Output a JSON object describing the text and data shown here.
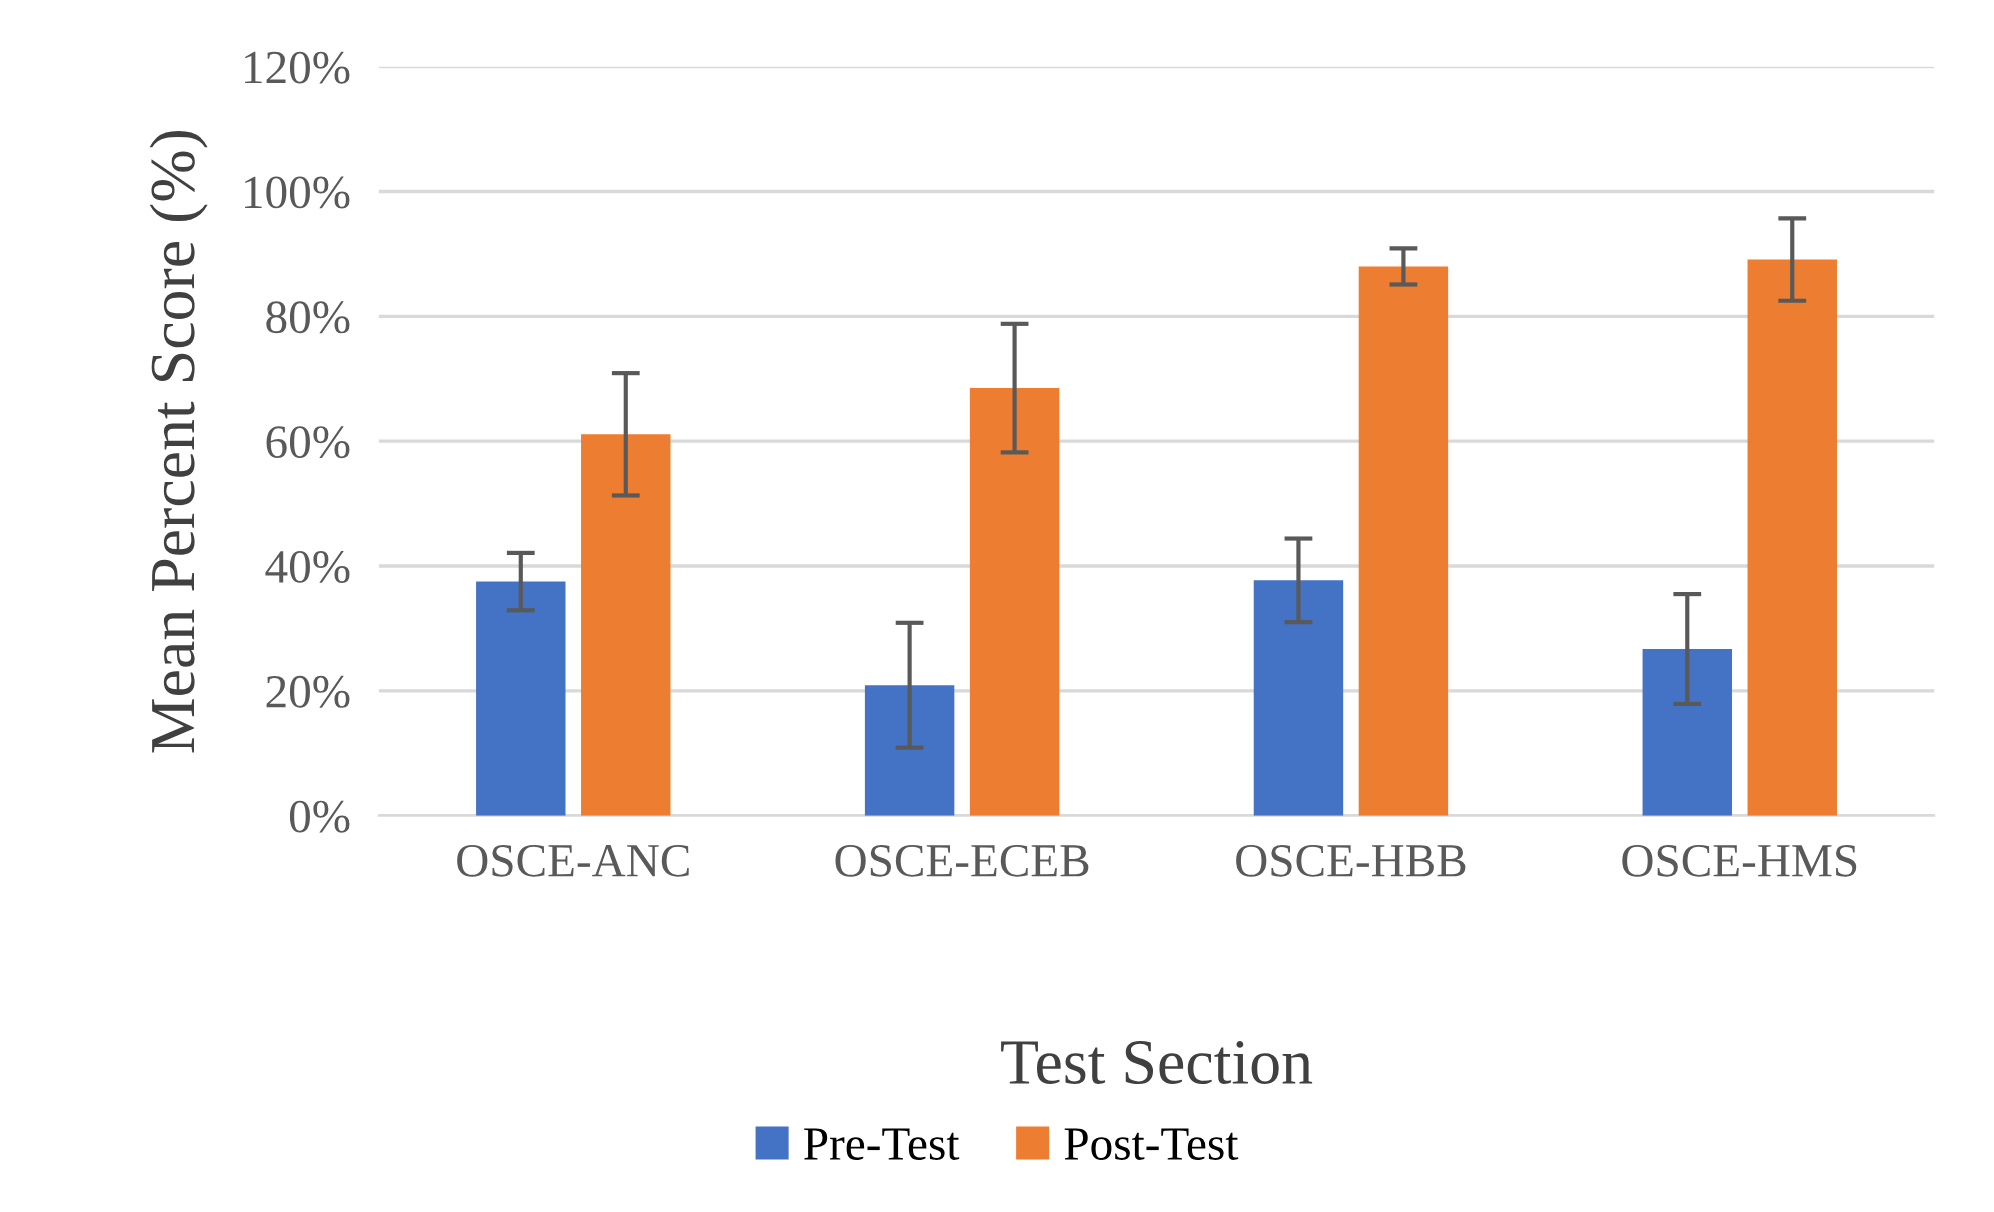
{
  "chart_data": {
    "type": "bar",
    "xlabel": "Test Section",
    "ylabel": "Mean Percent Score (%)",
    "categories": [
      "OSCE-ANC",
      "OSCE-ECEB",
      "OSCE-HBB",
      "OSCE-HMS"
    ],
    "series": [
      {
        "name": "Pre-Test",
        "color": "#4472c4",
        "values": [
          37.5,
          20.9,
          37.7,
          26.7
        ],
        "errors": [
          4.6,
          10,
          6.7,
          8.8
        ]
      },
      {
        "name": "Post-Test",
        "color": "#ed7d31",
        "values": [
          61.1,
          68.5,
          88.0,
          89.1
        ],
        "errors": [
          9.8,
          10.3,
          2.9,
          6.6
        ]
      }
    ],
    "ylim": [
      0,
      120
    ],
    "yticks": [
      {
        "value": 0,
        "label": "0%"
      },
      {
        "value": 20,
        "label": "20%"
      },
      {
        "value": 40,
        "label": "40%"
      },
      {
        "value": 60,
        "label": "60%"
      },
      {
        "value": 80,
        "label": "80%"
      },
      {
        "value": 100,
        "label": "100%"
      },
      {
        "value": 120,
        "label": "120%"
      }
    ],
    "grid": "y",
    "legend": "bottom"
  }
}
